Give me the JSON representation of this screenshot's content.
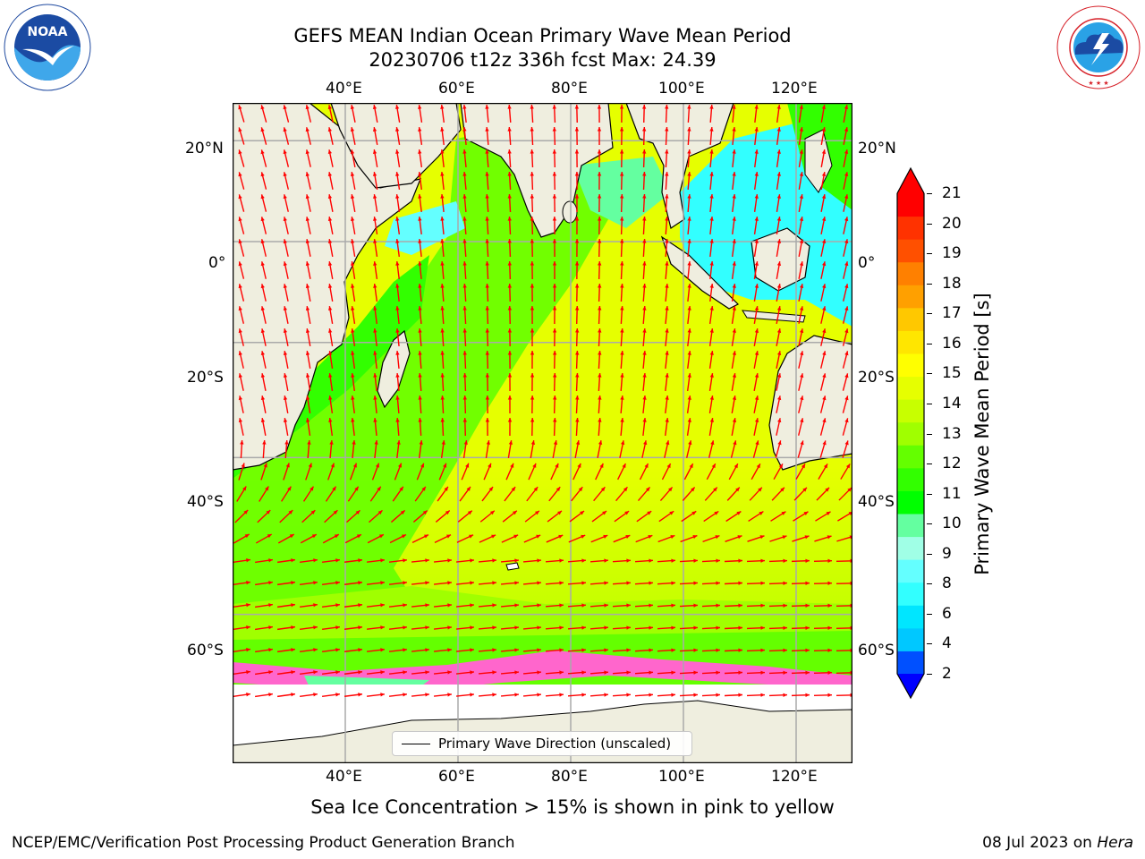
{
  "header": {
    "title_line1": "GEFS MEAN Indian Ocean Primary Wave Mean Period",
    "title_line2": "20230706 t12z 336h fcst   Max: 24.39"
  },
  "logos": {
    "left": {
      "name": "NOAA",
      "ring_text": "NATIONAL OCEANIC AND ATMOSPHERIC ADMINISTRATION",
      "bottom_text": "U.S. DEPARTMENT OF COMMERCE"
    },
    "right": {
      "ring_text": "NATIONAL WEATHER SERVICE"
    }
  },
  "map": {
    "lon_labels": [
      "40°E",
      "60°E",
      "80°E",
      "100°E",
      "120°E"
    ],
    "lat_labels": [
      "20°N",
      "0°",
      "20°S",
      "40°S",
      "60°S"
    ],
    "extent": {
      "lon": [
        20,
        130
      ],
      "lat": [
        -72,
        27
      ]
    },
    "lat_grid": [
      20,
      0,
      -20,
      -40,
      -60
    ],
    "lon_grid": [
      40,
      60,
      80,
      100,
      120
    ],
    "arrow_color": "#ff0000",
    "land_color": "#efeedf",
    "ice_color": "#ffffff"
  },
  "legend": {
    "label": "Primary Wave Direction (unscaled)"
  },
  "colorbar": {
    "label": "Primary Wave Mean Period [s]",
    "ticks": [
      "21",
      "20",
      "19",
      "18",
      "17",
      "16",
      "15",
      "14",
      "13",
      "12",
      "11",
      "10",
      "9",
      "8",
      "6",
      "4",
      "2"
    ],
    "colors": [
      "#0050ff",
      "#00c8ff",
      "#00e6ff",
      "#32ffff",
      "#64ffff",
      "#a0ffe6",
      "#64ffa0",
      "#00ff00",
      "#32ff00",
      "#64ff00",
      "#a0ff00",
      "#c8ff00",
      "#e6ff00",
      "#ffff00",
      "#ffe600",
      "#ffc800",
      "#ffa000",
      "#ff8000",
      "#ff5000",
      "#ff3200",
      "#ff0000"
    ],
    "under_color": "#0000ff",
    "over_color": "#ff0000"
  },
  "footer": {
    "caption": "Sea Ice Concentration > 15% is shown in pink to yellow",
    "left": "NCEP/EMC/Verification Post Processing Product Generation Branch",
    "date": "08 Jul 2023 on ",
    "host": "Hera"
  }
}
